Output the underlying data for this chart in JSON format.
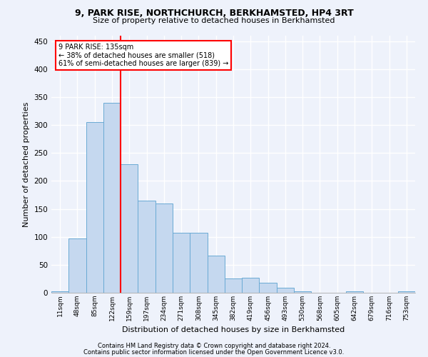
{
  "title1": "9, PARK RISE, NORTHCHURCH, BERKHAMSTED, HP4 3RT",
  "title2": "Size of property relative to detached houses in Berkhamsted",
  "xlabel": "Distribution of detached houses by size in Berkhamsted",
  "ylabel": "Number of detached properties",
  "categories": [
    "11sqm",
    "48sqm",
    "85sqm",
    "122sqm",
    "159sqm",
    "197sqm",
    "234sqm",
    "271sqm",
    "308sqm",
    "345sqm",
    "382sqm",
    "419sqm",
    "456sqm",
    "493sqm",
    "530sqm",
    "568sqm",
    "605sqm",
    "642sqm",
    "679sqm",
    "716sqm",
    "753sqm"
  ],
  "values": [
    3,
    97,
    305,
    340,
    230,
    165,
    160,
    107,
    107,
    67,
    26,
    27,
    18,
    9,
    2,
    0,
    0,
    2,
    0,
    0,
    2
  ],
  "bar_color": "#c5d8ef",
  "bar_edge_color": "#6aaad4",
  "red_line_index": 3,
  "annotation_line1": "9 PARK RISE: 135sqm",
  "annotation_line2": "← 38% of detached houses are smaller (518)",
  "annotation_line3": "61% of semi-detached houses are larger (839) →",
  "ylim": [
    0,
    460
  ],
  "yticks": [
    0,
    50,
    100,
    150,
    200,
    250,
    300,
    350,
    400,
    450
  ],
  "footer1": "Contains HM Land Registry data © Crown copyright and database right 2024.",
  "footer2": "Contains public sector information licensed under the Open Government Licence v3.0.",
  "bg_color": "#eef2fb",
  "grid_color": "#ffffff"
}
